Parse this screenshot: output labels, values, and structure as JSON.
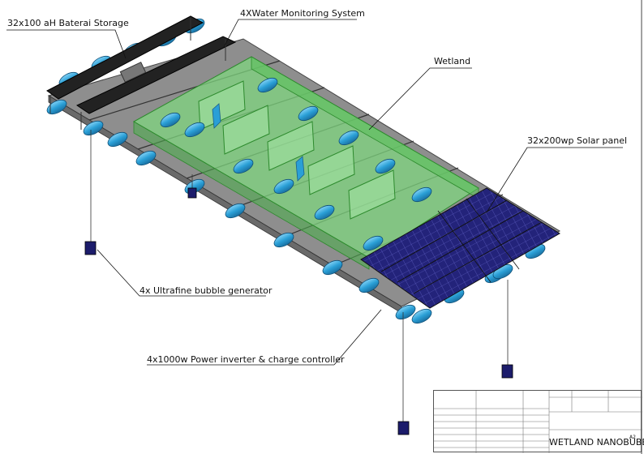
{
  "labels": {
    "battery_storage": "32x100 aH Baterai Storage",
    "water_monitoring": "4XWater Monitoring System",
    "wetland": "Wetland",
    "solar_panel": "32x200wp Solar panel",
    "bubble_generator": "4x Ultrafine bubble generator",
    "power_inverter": "4x1000w Power inverter & charge controller"
  },
  "title_block": {
    "drawing_title": "WETLAND NANOBUBBLE",
    "sheet_size": "A2"
  },
  "colors": {
    "deck": "#8e8e8e",
    "wetland": "#7fd67f",
    "float": "#2a9fd6",
    "solar": "#23237a",
    "battery_roof": "#222222",
    "device": "#1c1c6b"
  }
}
